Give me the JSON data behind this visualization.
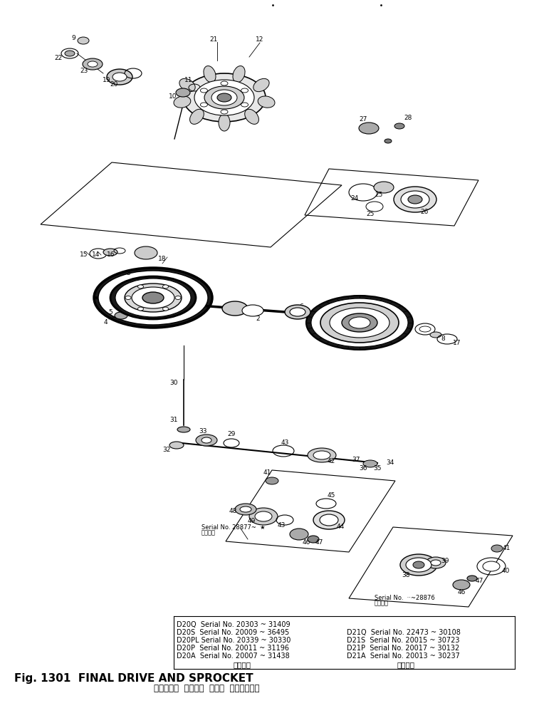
{
  "fig_title_jp": "ファイナル  ドライブ  および  スプロケット",
  "fig_title_en": "Fig. 1301  FINAL DRIVE AND SPROCKET",
  "serial_entries_left": [
    "D20A  Serial No. 20007 ~ 31438",
    "D20P  Serial No. 20011 ~ 31196",
    "D20PL Serial No. 20339 ~ 30330",
    "D20S  Serial No. 20009 ~ 36495",
    "D20Q  Serial No. 20303 ~ 31409"
  ],
  "serial_entries_right": [
    "D21A  Serial No. 20013 ~ 30237",
    "D21P  Serial No. 20017 ~ 30132",
    "D21S  Serial No. 20015 ~ 30723",
    "D21Q  Serial No. 22473 ~ 30108"
  ],
  "bg_color": "#ffffff",
  "lc": "#000000",
  "tc": "#000000"
}
